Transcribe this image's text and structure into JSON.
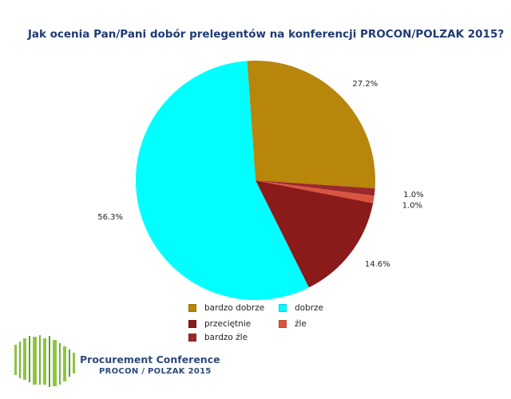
{
  "chart_data": {
    "type": "pie",
    "title": "Jak ocenia Pan/Pani dobór prelegentów na konferencji PROCON/POLZAK 2015?",
    "slices": [
      {
        "label": "bardzo dobrze",
        "value": 27.2,
        "display": "27.2%",
        "color": "#b8860b"
      },
      {
        "label": "bardzo źle",
        "value": 1.0,
        "display": "1.0%",
        "color": "#9a2a2a"
      },
      {
        "label": "źle",
        "value": 1.0,
        "display": "1.0%",
        "color": "#d9543f"
      },
      {
        "label": "przeciętnie",
        "value": 14.6,
        "display": "14.6%",
        "color": "#8b1a1a"
      },
      {
        "label": "dobrze",
        "value": 56.3,
        "display": "56.3%",
        "color": "#00ffff"
      }
    ],
    "legend": [
      {
        "label": "bardzo dobrze",
        "color": "#b8860b"
      },
      {
        "label": "dobrze",
        "color": "#00ffff"
      },
      {
        "label": "przeciętnie",
        "color": "#8b1a1a"
      },
      {
        "label": "źle",
        "color": "#d9543f"
      },
      {
        "label": "bardzo źle",
        "color": "#9a2a2a"
      }
    ]
  },
  "logo": {
    "line1": "Procurement Conference",
    "line2": "PROCON / POLZAK 2015",
    "color": "#8cc63f"
  }
}
